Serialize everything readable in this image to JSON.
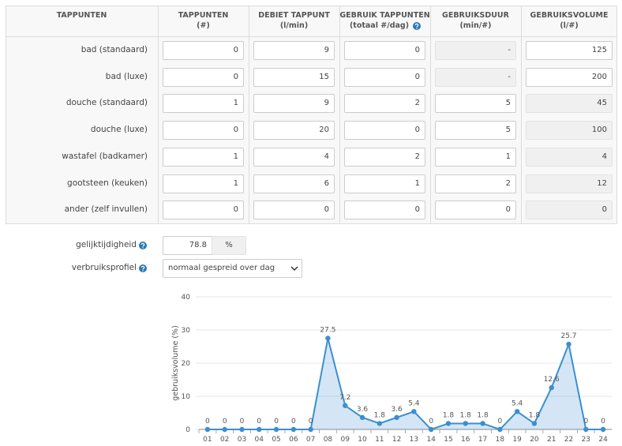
{
  "table": {
    "headers": [
      {
        "title": "TAPPUNTEN"
      },
      {
        "title": "TAPPUNTEN",
        "unit": "(#)"
      },
      {
        "title": "DEBIET TAPPUNT",
        "unit": "(l/min)"
      },
      {
        "title": "GEBRUIK TAPPUNTEN",
        "unit": "(totaal #/dag)",
        "help": true
      },
      {
        "title": "GEBRUIKSDUUR",
        "unit": "(min/#)"
      },
      {
        "title": "GEBRUIKSVOLUME",
        "unit": "(l/#)"
      }
    ],
    "rows": [
      {
        "label": "bad (standaard)",
        "cells": [
          0,
          9,
          0,
          "-",
          125
        ]
      },
      {
        "label": "bad (luxe)",
        "cells": [
          0,
          15,
          0,
          "-",
          200
        ]
      },
      {
        "label": "douche (standaard)",
        "cells": [
          1,
          9,
          2,
          5,
          45
        ]
      },
      {
        "label": "douche (luxe)",
        "cells": [
          0,
          20,
          0,
          5,
          100
        ]
      },
      {
        "label": "wastafel (badkamer)",
        "cells": [
          1,
          4,
          2,
          1,
          4
        ]
      },
      {
        "label": "gootsteen (keuken)",
        "cells": [
          1,
          6,
          1,
          2,
          12
        ]
      },
      {
        "label": "ander (zelf invullen)",
        "cells": [
          0,
          0,
          0,
          0,
          0
        ]
      }
    ]
  },
  "gelijktijdigheid": {
    "label": "gelijktijdigheid",
    "value": 78.8,
    "unit": "%",
    "help": true
  },
  "verbruiksprofiel": {
    "label": "verbruiksprofiel",
    "value": "normaal gespreid over dag",
    "help": true
  },
  "chart_data": {
    "type": "area",
    "y_label": "gebruiksvolume (%)",
    "categories": [
      "01",
      "02",
      "03",
      "04",
      "05",
      "06",
      "07",
      "08",
      "09",
      "10",
      "11",
      "12",
      "13",
      "14",
      "15",
      "16",
      "17",
      "18",
      "19",
      "20",
      "21",
      "22",
      "23",
      "24"
    ],
    "values": [
      0,
      0,
      0,
      0,
      0,
      0,
      0,
      27.5,
      7.2,
      3.6,
      1.8,
      3.6,
      5.4,
      0,
      1.8,
      1.8,
      1.8,
      0,
      5.4,
      1.8,
      12.6,
      25.7,
      0,
      0
    ],
    "color": "#3b8fd0",
    "ylim": [
      0,
      40
    ],
    "yticks": [
      0,
      10,
      20,
      30,
      40
    ],
    "grid": true
  }
}
